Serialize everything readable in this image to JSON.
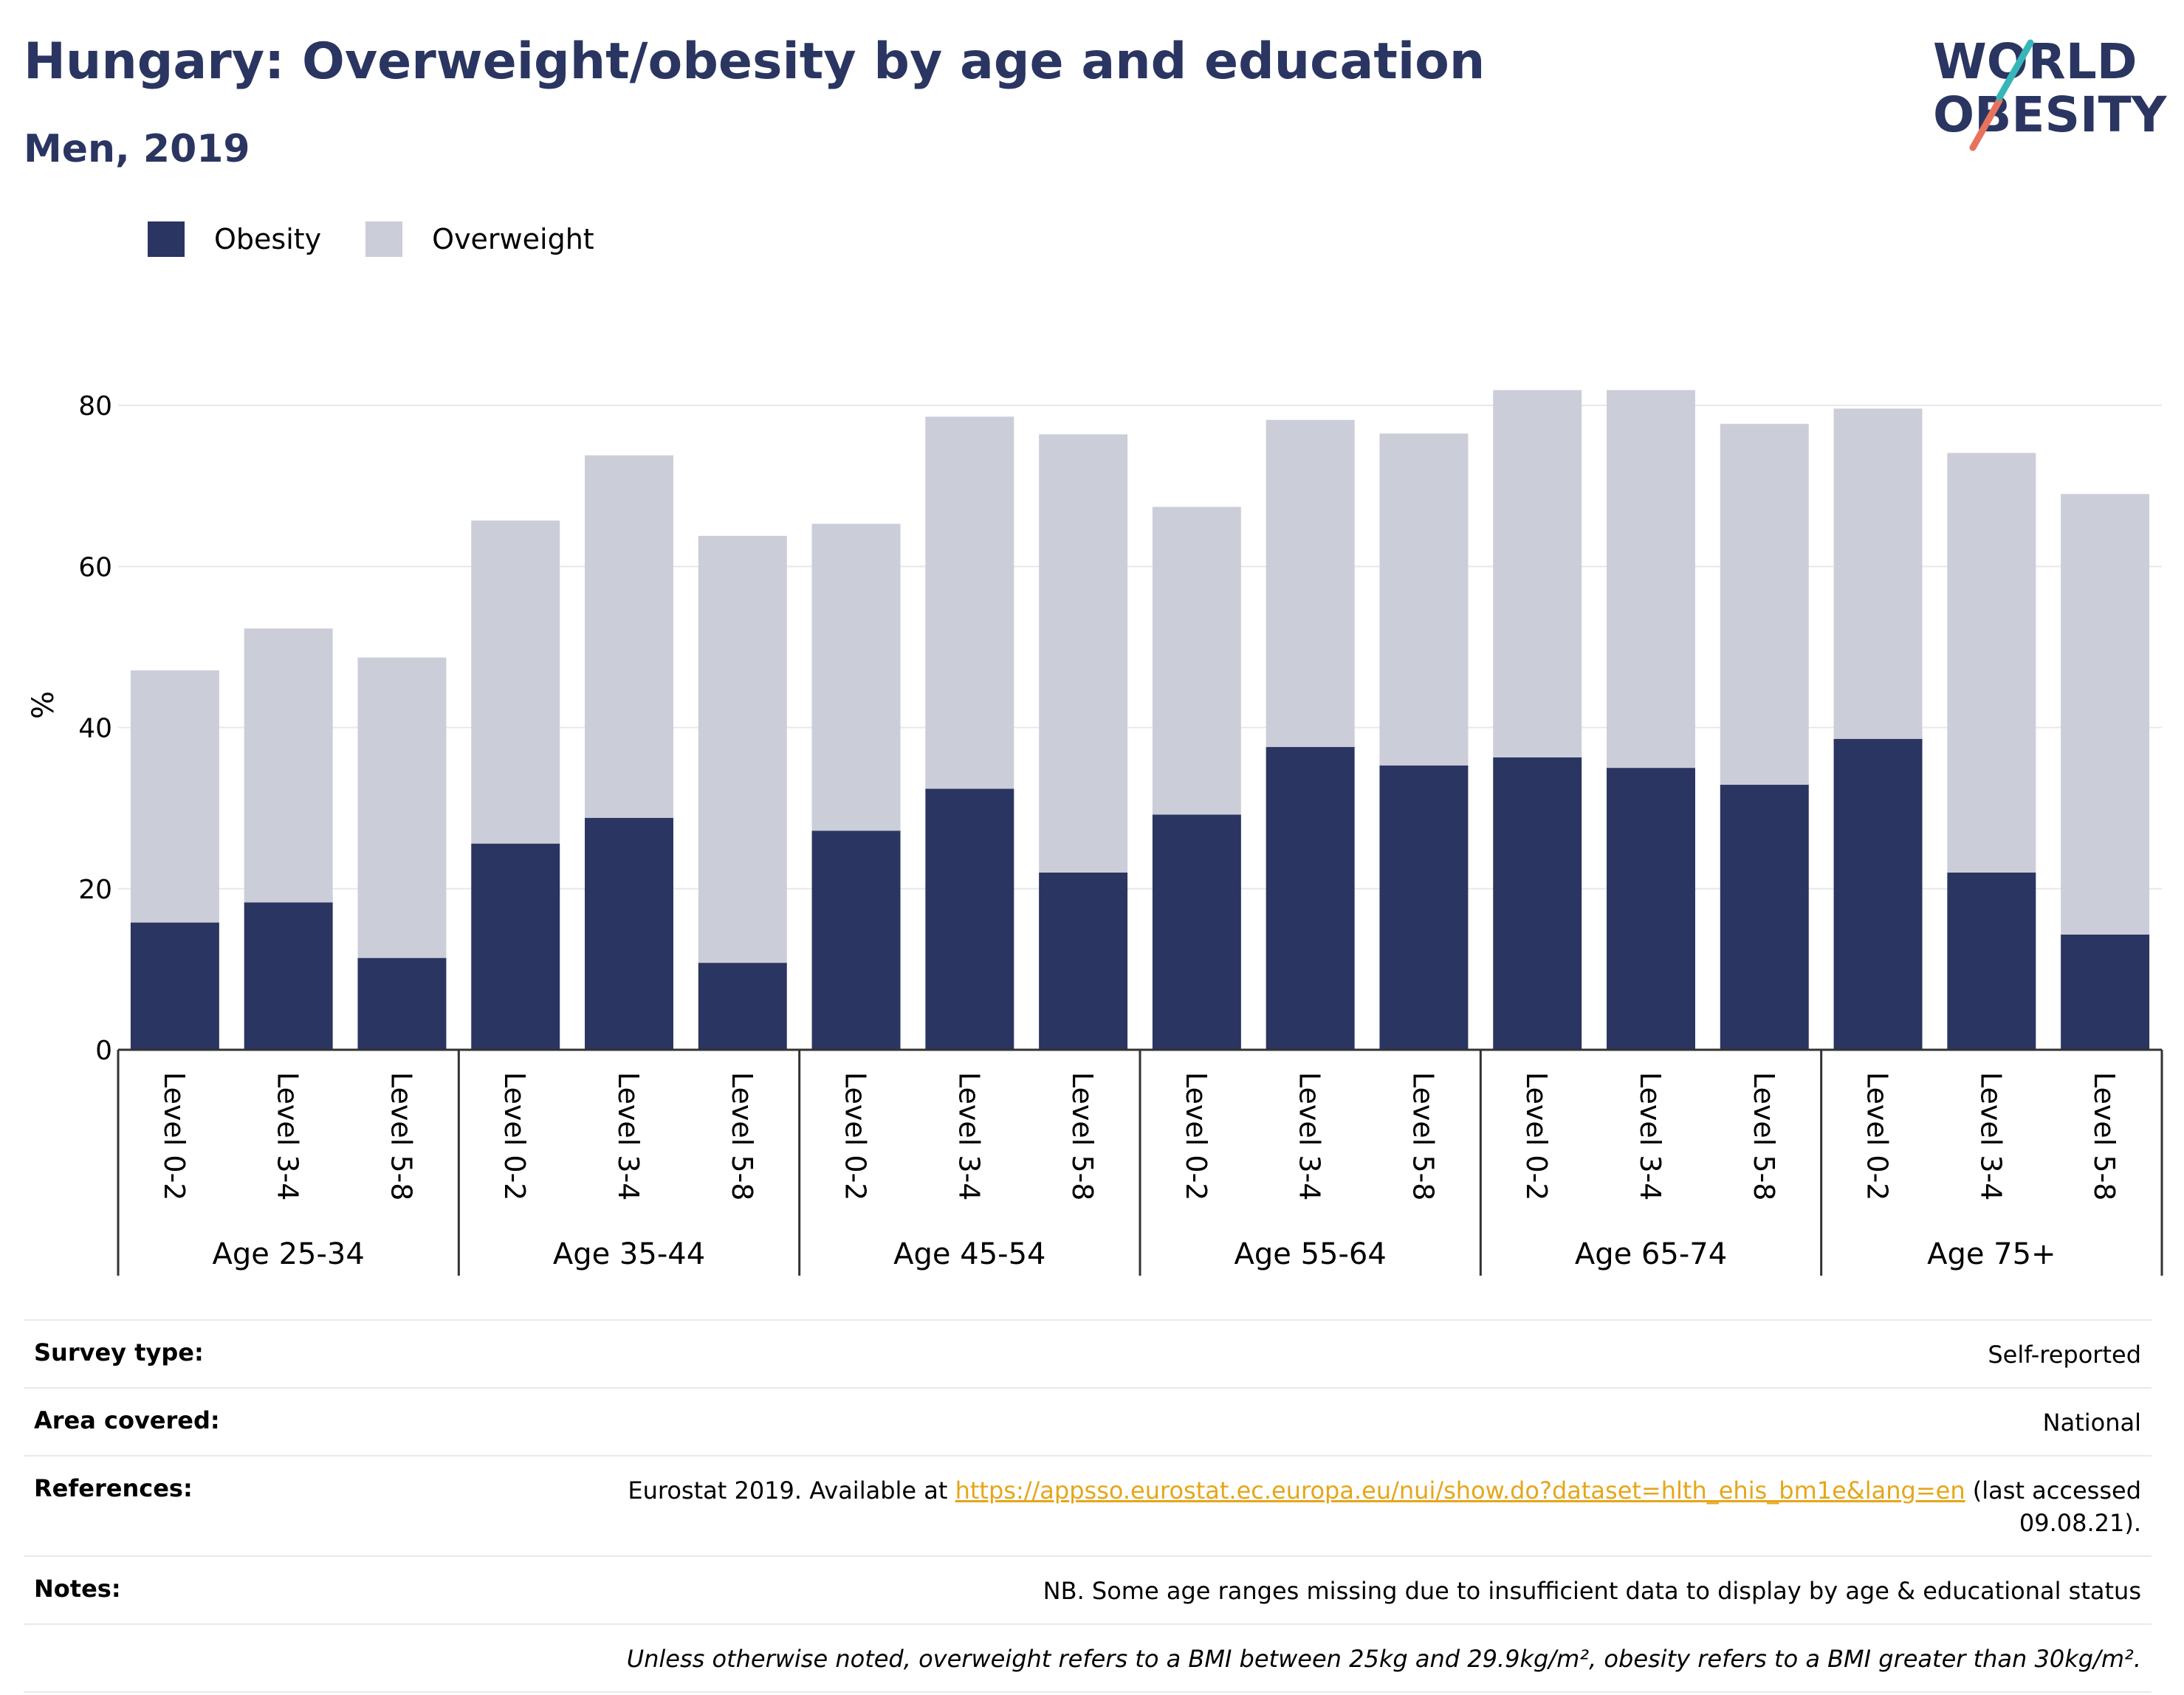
{
  "title": "Hungary: Overweight/obesity by age and education",
  "subtitle": "Men, 2019",
  "logo": {
    "line1": "WORLD",
    "line2": "OBESITY",
    "accent_colors": [
      "#37b6b8",
      "#e8735d"
    ]
  },
  "legend": [
    {
      "name": "Obesity",
      "color": "#2a3561"
    },
    {
      "name": "Overweight",
      "color": "#cbcdd9"
    }
  ],
  "chart_data": {
    "type": "bar",
    "stacked": true,
    "ylabel": "%",
    "ylim": [
      0,
      90
    ],
    "yticks": [
      0,
      20,
      40,
      60,
      80
    ],
    "grid": true,
    "legend_position": "top-left",
    "groups": [
      {
        "name": "Age 25-34",
        "categories": [
          "Level 0-2",
          "Level 3-4",
          "Level 5-8"
        ]
      },
      {
        "name": "Age 35-44",
        "categories": [
          "Level 0-2",
          "Level 3-4",
          "Level 5-8"
        ]
      },
      {
        "name": "Age 45-54",
        "categories": [
          "Level 0-2",
          "Level 3-4",
          "Level 5-8"
        ]
      },
      {
        "name": "Age 55-64",
        "categories": [
          "Level 0-2",
          "Level 3-4",
          "Level 5-8"
        ]
      },
      {
        "name": "Age 65-74",
        "categories": [
          "Level 0-2",
          "Level 3-4",
          "Level 5-8"
        ]
      },
      {
        "name": "Age 75+",
        "categories": [
          "Level 0-2",
          "Level 3-4",
          "Level 5-8"
        ]
      }
    ],
    "series": [
      {
        "name": "Obesity",
        "color": "#2a3561",
        "values": [
          15.8,
          18.3,
          11.4,
          25.6,
          28.8,
          10.8,
          27.2,
          32.4,
          22.0,
          29.2,
          37.6,
          35.3,
          36.3,
          35.0,
          32.9,
          38.6,
          22.0,
          14.3
        ]
      },
      {
        "name": "Overweight",
        "color": "#cbcdd9",
        "values": [
          31.3,
          34.0,
          37.3,
          40.1,
          45.0,
          53.0,
          38.1,
          46.2,
          54.4,
          38.2,
          40.6,
          41.2,
          45.6,
          46.9,
          44.8,
          41.0,
          52.1,
          54.7
        ]
      }
    ]
  },
  "info": {
    "survey_type": {
      "label": "Survey type:",
      "value": "Self-reported"
    },
    "area_covered": {
      "label": "Area covered:",
      "value": "National"
    },
    "references": {
      "label": "References:",
      "prefix": "Eurostat 2019. Available at ",
      "link": "https://appsso.eurostat.ec.europa.eu/nui/show.do?dataset=hlth_ehis_bm1e&lang=en",
      "suffix": " (last accessed",
      "line2": "09.08.21)."
    },
    "notes": {
      "label": "Notes:",
      "value": "NB. Some age ranges missing due to insufficient data to display by age & educational status"
    },
    "definition": "Unless otherwise noted, overweight refers to a BMI between 25kg and 29.9kg/m², obesity refers to a BMI greater than 30kg/m²."
  }
}
